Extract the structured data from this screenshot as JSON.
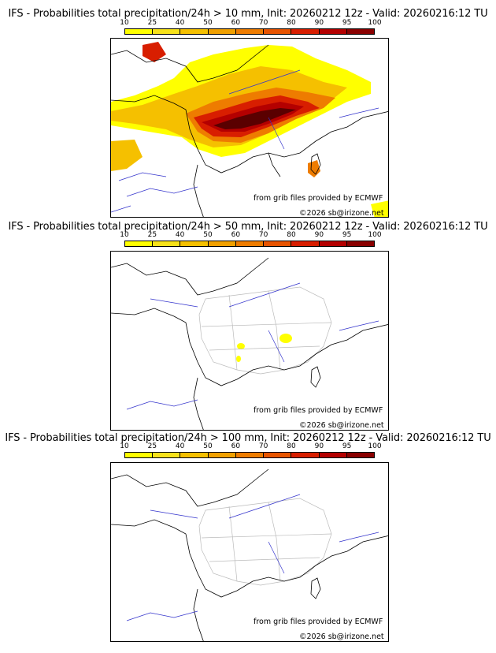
{
  "panels": [
    {
      "title": "IFS - Probabilities total precipitation/24h > 10 mm, Init: 20260212 12z - Valid: 20260216:12 TU"
    },
    {
      "title": "IFS - Probabilities total precipitation/24h > 50 mm, Init: 20260212 12z - Valid: 20260216:12 TU"
    },
    {
      "title": "IFS - Probabilities total precipitation/24h > 100 mm, Init: 20260212 12z - Valid: 20260216:12 TU"
    }
  ],
  "colorbar": {
    "ticks": [
      "10",
      "25",
      "40",
      "50",
      "60",
      "70",
      "80",
      "90",
      "95",
      "100"
    ],
    "colors": [
      "#ffff00",
      "#f7e21a",
      "#f5c000",
      "#f0a000",
      "#ee7c00",
      "#e85400",
      "#d81e00",
      "#b40000",
      "#8a0000"
    ]
  },
  "credit": "from grib files provided by ECMWF",
  "copyright": "©2026 sb@irizone.net"
}
